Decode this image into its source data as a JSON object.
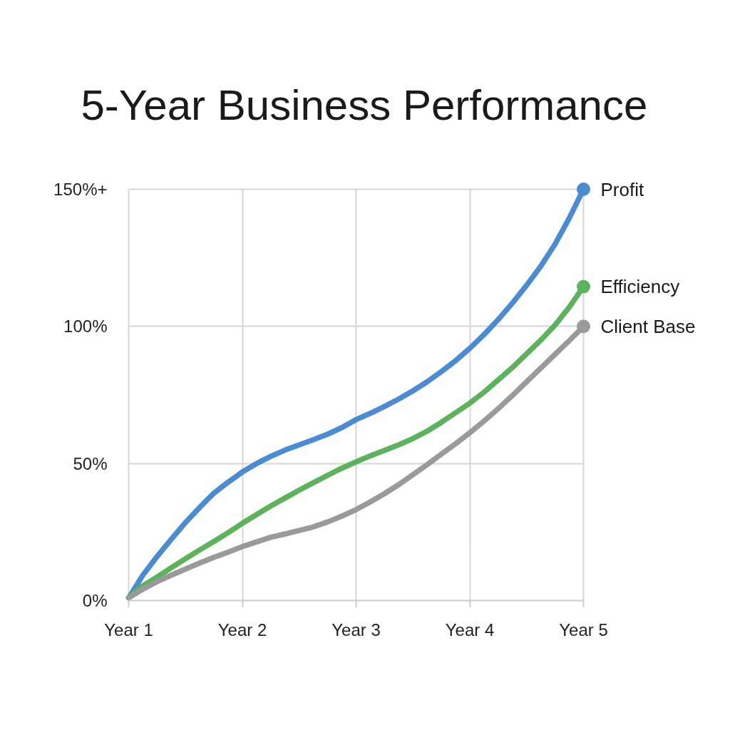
{
  "chart_data": {
    "type": "line",
    "title": "5-Year Business Performance",
    "categories": [
      "Year 1",
      null,
      null,
      null,
      null,
      null,
      null,
      null,
      "Year 2",
      null,
      null,
      null,
      null,
      null,
      null,
      null,
      "Year 3",
      null,
      null,
      null,
      null,
      null,
      null,
      null,
      "Year 4",
      null,
      null,
      null,
      null,
      null,
      null,
      null,
      "Year 5"
    ],
    "ylim": [
      0,
      150
    ],
    "yticks": [
      {
        "value": 0,
        "label": "0%"
      },
      {
        "value": 50,
        "label": "50%"
      },
      {
        "value": 100,
        "label": "100%"
      },
      {
        "value": 150,
        "label": "150%+"
      }
    ],
    "grid": true,
    "line_style": "solid",
    "series": [
      {
        "name": "Profit",
        "color": "#4a8bd1",
        "values": [
          1,
          9.3,
          16.1,
          22.4,
          28.5,
          34,
          39.2,
          43.2,
          46.9,
          50,
          52.6,
          54.9,
          56.8,
          58.7,
          60.7,
          63.1,
          66,
          68.3,
          70.8,
          73.5,
          76.5,
          79.8,
          83.5,
          87.5,
          92,
          97,
          102.5,
          108.5,
          115,
          122,
          130,
          139.5,
          150
        ]
      },
      {
        "name": "Efficiency",
        "color": "#5cb35c",
        "values": [
          1,
          5.4,
          8.6,
          12,
          15.3,
          18.5,
          21.6,
          24.8,
          28.2,
          31.4,
          34.5,
          37.4,
          40.3,
          43,
          45.7,
          48.3,
          50.6,
          52.8,
          54.8,
          56.8,
          59.1,
          61.8,
          65,
          68.5,
          72,
          76,
          80.5,
          85,
          90,
          95,
          100.5,
          107,
          114.5
        ]
      },
      {
        "name": "Client Base",
        "color": "#9a9a9a",
        "values": [
          1,
          4.2,
          6.9,
          9.3,
          11.5,
          13.7,
          15.8,
          17.7,
          19.7,
          21.4,
          23.1,
          24.3,
          25.6,
          26.9,
          28.7,
          30.8,
          33.2,
          36,
          39,
          42.3,
          45.9,
          49.6,
          53.4,
          57.2,
          61.2,
          65.5,
          70,
          74.8,
          79.8,
          84.8,
          89.8,
          94.8,
          100
        ]
      },
      {
        "type": "scatter",
        "marker": "circle",
        "color": "#4a8bd1",
        "values": [
          null,
          null,
          null,
          null,
          null,
          null,
          null,
          null,
          null,
          null,
          null,
          null,
          null,
          null,
          null,
          null,
          null,
          null,
          null,
          null,
          null,
          null,
          null,
          null,
          null,
          null,
          null,
          null,
          null,
          null,
          null,
          null,
          150
        ]
      },
      {
        "type": "scatter",
        "marker": "circle",
        "color": "#5cb35c",
        "values": [
          null,
          null,
          null,
          null,
          null,
          null,
          null,
          null,
          null,
          null,
          null,
          null,
          null,
          null,
          null,
          null,
          null,
          null,
          null,
          null,
          null,
          null,
          null,
          null,
          null,
          null,
          null,
          null,
          null,
          null,
          null,
          null,
          114.5
        ]
      },
      {
        "type": "scatter",
        "marker": "circle",
        "color": "#9a9a9a",
        "values": [
          null,
          null,
          null,
          null,
          null,
          null,
          null,
          null,
          null,
          null,
          null,
          null,
          null,
          null,
          null,
          null,
          null,
          null,
          null,
          null,
          null,
          null,
          null,
          null,
          null,
          null,
          null,
          null,
          null,
          null,
          null,
          null,
          100
        ]
      }
    ]
  }
}
